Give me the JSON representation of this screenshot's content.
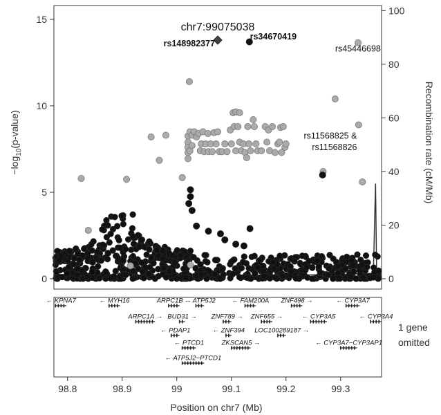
{
  "chart_data": {
    "type": "scatter",
    "title": "chr7:99075038",
    "xlabel": "Position on chr7 (Mb)",
    "ylabel_left_prefix": "−log",
    "ylabel_left_sub": "10",
    "ylabel_left_suffix": "(p-value)",
    "ylabel_right": "Recombination rate (cM/Mb)",
    "xlim": [
      98.775,
      99.375
    ],
    "ylim_left": [
      -0.6,
      15.8
    ],
    "ylim_right": [
      -3.87,
      101.9
    ],
    "x_ticks": [
      "98.8",
      "98.9",
      "99",
      "99.1",
      "99.2",
      "99.3"
    ],
    "x_tick_values": [
      98.8,
      98.9,
      99.0,
      99.1,
      99.2,
      99.3
    ],
    "y_ticks_left": [
      "0",
      "5",
      "10",
      "15"
    ],
    "y_tick_values_left": [
      0,
      5,
      10,
      15
    ],
    "y_ticks_right": [
      "0",
      "20",
      "40",
      "60",
      "80",
      "100"
    ],
    "y_tick_values_right": [
      0,
      20,
      40,
      60,
      80,
      100
    ],
    "lead_snp": {
      "name": "rs148982377",
      "x": 99.075,
      "y": 13.8
    },
    "annotations": [
      {
        "text": "rs148982377",
        "x": 99.07,
        "y": 13.45,
        "anchor": "end",
        "bold": true
      },
      {
        "text": "rs34670419",
        "x": 99.134,
        "y": 13.85,
        "anchor": "start",
        "bold": true
      },
      {
        "text": "rs45446698",
        "x": 99.29,
        "y": 13.15,
        "anchor": "start",
        "bold": false
      },
      {
        "text": "rs11568825 &",
        "x": 99.33,
        "y": 8.1,
        "anchor": "end",
        "bold": false
      },
      {
        "text": "rs11568826",
        "x": 99.33,
        "y": 7.45,
        "anchor": "end",
        "bold": false
      }
    ],
    "series": [
      {
        "color": "#aaaaaa",
        "points": [
          [
            98.825,
            5.8
          ],
          [
            98.838,
            2.8
          ],
          [
            98.908,
            5.75
          ],
          [
            98.953,
            8.2
          ],
          [
            98.968,
            6.85
          ],
          [
            98.98,
            8.3
          ],
          [
            99.01,
            5.85
          ],
          [
            99.023,
            11.4
          ],
          [
            99.0205,
            8.25
          ],
          [
            99.0205,
            7.9
          ],
          [
            99.0205,
            7.6
          ],
          [
            99.0205,
            7.3
          ],
          [
            99.0205,
            6.95
          ],
          [
            99.024,
            8.5
          ],
          [
            99.024,
            7.4
          ],
          [
            99.028,
            8.3
          ],
          [
            99.028,
            7.7
          ],
          [
            99.032,
            8.5
          ],
          [
            99.036,
            8.2
          ],
          [
            99.04,
            8.4
          ],
          [
            99.043,
            7.4
          ],
          [
            99.045,
            7.8
          ],
          [
            99.048,
            8.5
          ],
          [
            99.05,
            7.35
          ],
          [
            99.053,
            7.8
          ],
          [
            99.057,
            8.4
          ],
          [
            99.058,
            7.35
          ],
          [
            99.062,
            7.8
          ],
          [
            99.065,
            7.35
          ],
          [
            99.068,
            8.45
          ],
          [
            99.072,
            7.8
          ],
          [
            99.075,
            8.5
          ],
          [
            99.078,
            7.35
          ],
          [
            99.083,
            7.35
          ],
          [
            99.088,
            7.8
          ],
          [
            99.092,
            7.35
          ],
          [
            99.098,
            8.6
          ],
          [
            99.1,
            7.8
          ],
          [
            99.103,
            9.6
          ],
          [
            99.105,
            8.8
          ],
          [
            99.108,
            9.65
          ],
          [
            99.108,
            7.4
          ],
          [
            99.112,
            8.8
          ],
          [
            99.115,
            9.6
          ],
          [
            99.115,
            7.9
          ],
          [
            99.118,
            7.4
          ],
          [
            99.122,
            7.8
          ],
          [
            99.125,
            7.3
          ],
          [
            99.128,
            7.0
          ],
          [
            99.13,
            8.8
          ],
          [
            99.132,
            7.8
          ],
          [
            99.135,
            7.4
          ],
          [
            99.14,
            9.2
          ],
          [
            99.142,
            8.8
          ],
          [
            99.145,
            7.8
          ],
          [
            99.148,
            7.4
          ],
          [
            99.155,
            7.4
          ],
          [
            99.162,
            8.8
          ],
          [
            99.165,
            7.9
          ],
          [
            99.168,
            8.6
          ],
          [
            99.17,
            7.4
          ],
          [
            99.175,
            8.8
          ],
          [
            99.18,
            7.3
          ],
          [
            99.185,
            7.8
          ],
          [
            99.188,
            7.9
          ],
          [
            99.19,
            8.75
          ],
          [
            99.192,
            7.3
          ],
          [
            99.195,
            8.8
          ],
          [
            99.198,
            7.6
          ],
          [
            99.2,
            7.8
          ],
          [
            99.268,
            6.2
          ],
          [
            99.29,
            10.4
          ],
          [
            99.332,
            13.65
          ],
          [
            99.333,
            8.9
          ],
          [
            99.34,
            5.6
          ],
          [
            99.025,
            0.8
          ],
          [
            98.915,
            0.75
          ]
        ]
      },
      {
        "color": "#111111",
        "points": [
          [
            99.025,
            5.15
          ],
          [
            99.025,
            4.75
          ],
          [
            99.022,
            4.35
          ],
          [
            99.028,
            3.95
          ],
          [
            99.036,
            3.05
          ],
          [
            99.058,
            2.75
          ],
          [
            99.08,
            2.6
          ],
          [
            99.088,
            2.25
          ],
          [
            99.108,
            2.0
          ],
          [
            99.123,
            1.9
          ],
          [
            99.134,
            2.9
          ],
          [
            99.267,
            6.0
          ],
          [
            99.133,
            13.7
          ]
        ]
      }
    ],
    "recomb_line": {
      "color": "#333333",
      "points": [
        [
          98.775,
          1.2
        ],
        [
          98.9,
          1.3
        ],
        [
          99.0,
          1.5
        ],
        [
          99.1,
          1.4
        ],
        [
          99.2,
          1.3
        ],
        [
          99.3,
          1.6
        ],
        [
          99.36,
          2.0
        ],
        [
          99.364,
          35.5
        ],
        [
          99.366,
          2.0
        ],
        [
          99.375,
          1.8
        ]
      ]
    },
    "genes": [
      {
        "name": "KPNA7",
        "row": 0,
        "start": 98.778,
        "end": 98.798,
        "strand": "-"
      },
      {
        "name": "MYH16",
        "row": 0,
        "start": 98.876,
        "end": 98.896,
        "strand": "-"
      },
      {
        "name": "ARPC1B",
        "row": 0,
        "start": 98.985,
        "end": 99.005,
        "strand": "+"
      },
      {
        "name": "ATP5J2",
        "row": 0,
        "start": 99.035,
        "end": 99.05,
        "strand": "-"
      },
      {
        "name": "FAM200A",
        "row": 0,
        "start": 99.125,
        "end": 99.145,
        "strand": "-"
      },
      {
        "name": "ZNF498",
        "row": 0,
        "start": 99.21,
        "end": 99.23,
        "strand": "+"
      },
      {
        "name": "CYP3A7",
        "row": 0,
        "start": 99.31,
        "end": 99.335,
        "strand": "-"
      },
      {
        "name": "ARPC1A",
        "row": 1,
        "start": 98.925,
        "end": 98.96,
        "strand": "+"
      },
      {
        "name": "BUD31",
        "row": 1,
        "start": 99.005,
        "end": 99.015,
        "strand": "+"
      },
      {
        "name": "ZNF789",
        "row": 1,
        "start": 99.085,
        "end": 99.1,
        "strand": "+"
      },
      {
        "name": "ZNF655",
        "row": 1,
        "start": 99.155,
        "end": 99.175,
        "strand": "+"
      },
      {
        "name": "CYP3A5",
        "row": 1,
        "start": 99.245,
        "end": 99.275,
        "strand": "-"
      },
      {
        "name": "CYP3A4",
        "row": 1,
        "start": 99.355,
        "end": 99.375,
        "strand": "-"
      },
      {
        "name": "PDAP1",
        "row": 2,
        "start": 98.99,
        "end": 99.005,
        "strand": "-"
      },
      {
        "name": "ZNF394",
        "row": 2,
        "start": 99.09,
        "end": 99.1,
        "strand": "-"
      },
      {
        "name": "LOC100289187",
        "row": 2,
        "start": 99.185,
        "end": 99.2,
        "strand": "+"
      },
      {
        "name": "PTCD1",
        "row": 3,
        "start": 99.01,
        "end": 99.035,
        "strand": "-"
      },
      {
        "name": "ZKSCAN5",
        "row": 3,
        "start": 99.1,
        "end": 99.135,
        "strand": "+"
      },
      {
        "name": "CYP3A7−CYP3AP1",
        "row": 3,
        "start": 99.3,
        "end": 99.33,
        "strand": "-"
      },
      {
        "name": "ATP5J2−PTCD1",
        "row": 4,
        "start": 99.01,
        "end": 99.05,
        "strand": "-"
      }
    ]
  },
  "side_note": {
    "line1": "1 gene",
    "line2": "omitted"
  }
}
